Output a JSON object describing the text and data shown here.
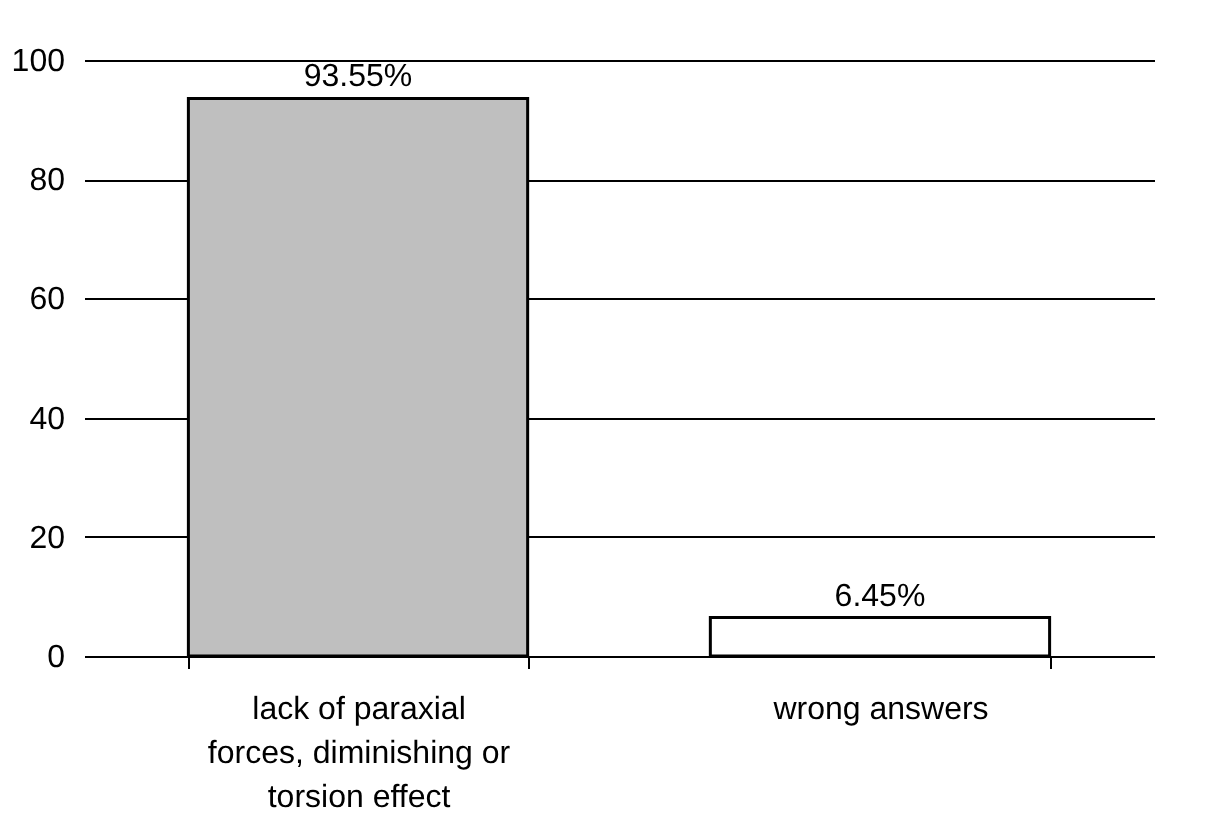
{
  "chart_data": {
    "type": "bar",
    "categories": [
      "lack of paraxial forces, diminishing or torsion effect",
      "wrong answers"
    ],
    "values": [
      93.55,
      6.45
    ],
    "colors": [
      "#bfbfbf",
      "#ffffff"
    ],
    "value_labels": [
      "93.55%",
      "6.45%"
    ],
    "ylim": [
      0,
      100
    ],
    "yticks": [
      0,
      20,
      40,
      60,
      80,
      100
    ],
    "grid": "y"
  }
}
